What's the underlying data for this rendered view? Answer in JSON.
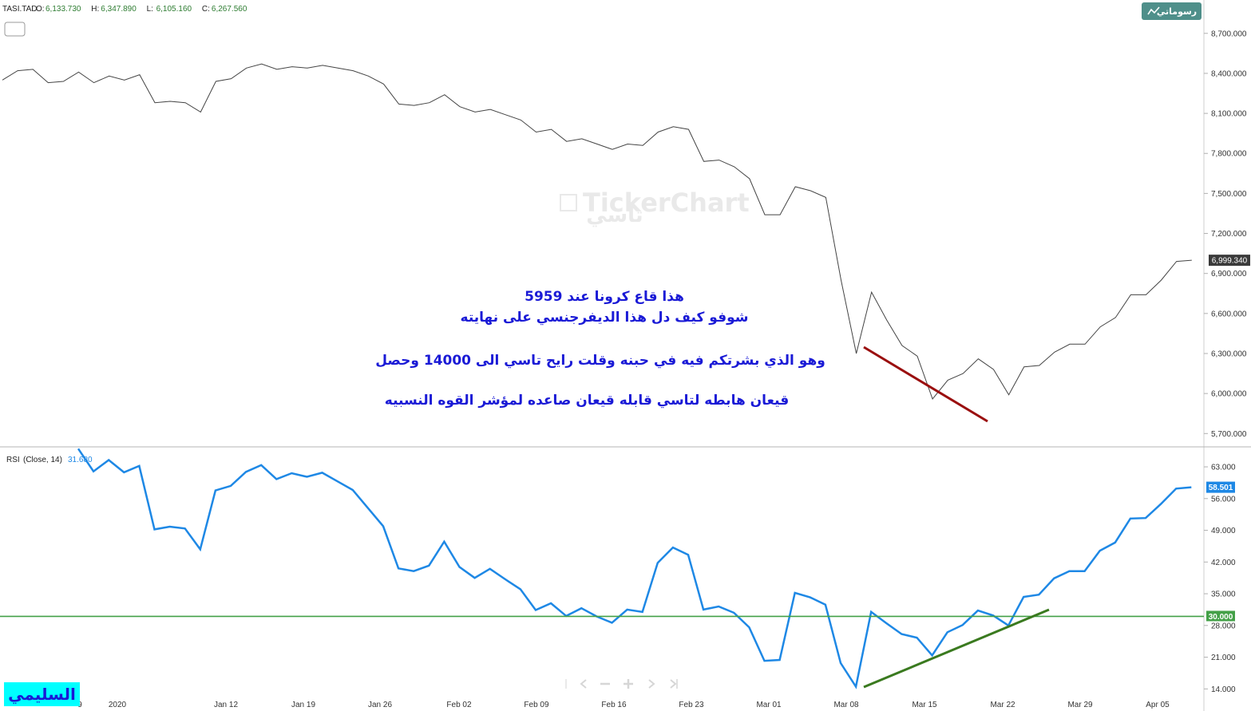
{
  "header": {
    "symbol": "TASI.TAD",
    "ohlc": [
      {
        "label": "O:",
        "value": "6,133.730"
      },
      {
        "label": "H:",
        "value": "6,347.890"
      },
      {
        "label": "L:",
        "value": "6,105.160"
      },
      {
        "label": "C:",
        "value": "6,267.560"
      }
    ],
    "ohlc_color": "#2e7d32",
    "drawings_button_label": "رسوماتي"
  },
  "watermark": {
    "brand": "TickerChart",
    "arabic": "تاسي"
  },
  "annotation": {
    "lines": [
      "هذا قاع كرونا  عند 5959",
      "شوفو كيف دل هذا الديفرجنسي على نهايته",
      "وهو الذي بشرتكم فيه في حبنه وقلت رايح تاسي الى 14000 وحصل",
      "قيعان هابطه لتاسي قابله قيعان صاعده لمؤشر القوه النسبيه"
    ],
    "color": "#1a1ad6"
  },
  "signature": {
    "text": "السليمي",
    "background": "#00ffff",
    "color": "#1a1ad6"
  },
  "price_tag": {
    "value": "6,999.340"
  },
  "rsi_tag": {
    "value": "58.501",
    "color": "#1e88e5"
  },
  "level_tag": {
    "value": "30.000",
    "color": "#43a047"
  },
  "rsi_header": {
    "name": "RSI",
    "params": "(Close, 14)",
    "value": "31.680"
  },
  "chart_data": [
    {
      "type": "line",
      "name": "TASI.TAD",
      "ylim": [
        5600,
        8950
      ],
      "yticks": [
        5700,
        6000,
        6300,
        6600,
        6900,
        7200,
        7500,
        7800,
        8100,
        8400,
        8700
      ],
      "ytick_labels": [
        "5,700.000",
        "6,000.000",
        "6,300.000",
        "6,600.000",
        "6,900.000",
        "7,200.000",
        "7,500.000",
        "7,800.000",
        "8,100.000",
        "8,400.000",
        "8,700.000"
      ],
      "color": "#444444",
      "values": [
        8350,
        8420,
        8430,
        8330,
        8340,
        8410,
        8330,
        8380,
        8350,
        8390,
        8180,
        8190,
        8180,
        8110,
        8340,
        8360,
        8440,
        8470,
        8430,
        8450,
        8440,
        8460,
        8440,
        8420,
        8380,
        8320,
        8170,
        8160,
        8180,
        8240,
        8150,
        8110,
        8130,
        8090,
        8050,
        7960,
        7980,
        7890,
        7910,
        7870,
        7830,
        7870,
        7860,
        7960,
        8000,
        7980,
        7740,
        7750,
        7700,
        7610,
        7340,
        7340,
        7550,
        7520,
        7470,
        6850,
        6300,
        6760,
        6550,
        6360,
        6280,
        5959,
        6100,
        6150,
        6260,
        6180,
        5990,
        6200,
        6210,
        6310,
        6370,
        6370,
        6500,
        6570,
        6740,
        6740,
        6850,
        6990,
        6999
      ]
    },
    {
      "type": "line",
      "name": "RSI",
      "ylim": [
        13,
        66
      ],
      "yticks": [
        14,
        21,
        28,
        35,
        42,
        49,
        56,
        63
      ],
      "ytick_labels": [
        "14.000",
        "21.000",
        "28.000",
        "35.000",
        "42.000",
        "49.000",
        "56.000",
        "63.000"
      ],
      "color": "#1e88e5",
      "values": [
        67,
        62,
        64.5,
        61.8,
        63.2,
        49.2,
        49.8,
        49.4,
        44.8,
        57.8,
        58.8,
        61.9,
        63.4,
        60.3,
        61.6,
        60.8,
        61.7,
        59.8,
        57.9,
        53.9,
        49.9,
        40.6,
        40.0,
        41.2,
        46.5,
        40.9,
        38.5,
        40.5,
        38.2,
        36.0,
        31.4,
        32.9,
        30.1,
        31.8,
        30.0,
        28.6,
        31.5,
        31.0,
        41.8,
        45.2,
        43.6,
        31.5,
        32.2,
        30.8,
        27.6,
        20.2,
        20.4,
        35.2,
        34.2,
        32.6,
        19.7,
        14.5,
        31.0,
        28.5,
        26.1,
        25.3,
        21.4,
        26.5,
        28.1,
        31.3,
        30.2,
        28.0,
        34.3,
        34.8,
        38.4,
        40.0,
        40.0,
        44.5,
        46.3,
        51.6,
        51.7,
        54.8,
        58.2,
        58.5
      ]
    }
  ],
  "time_axis": {
    "labels": [
      "9",
      "2020",
      "Jan 12",
      "Jan 19",
      "Jan 26",
      "Feb 02",
      "Feb 09",
      "Feb 16",
      "Feb 23",
      "Mar 01",
      "Mar 08",
      "Mar 15",
      "Mar 22",
      "Mar 29",
      "Apr 05"
    ]
  },
  "colors": {
    "price_line": "#444444",
    "rsi_line": "#1e88e5",
    "level_line": "#43a047",
    "price_divergence": "#9a0e0e",
    "rsi_divergence": "#3a7a1f",
    "drawings_button": "#4f8f8a"
  }
}
